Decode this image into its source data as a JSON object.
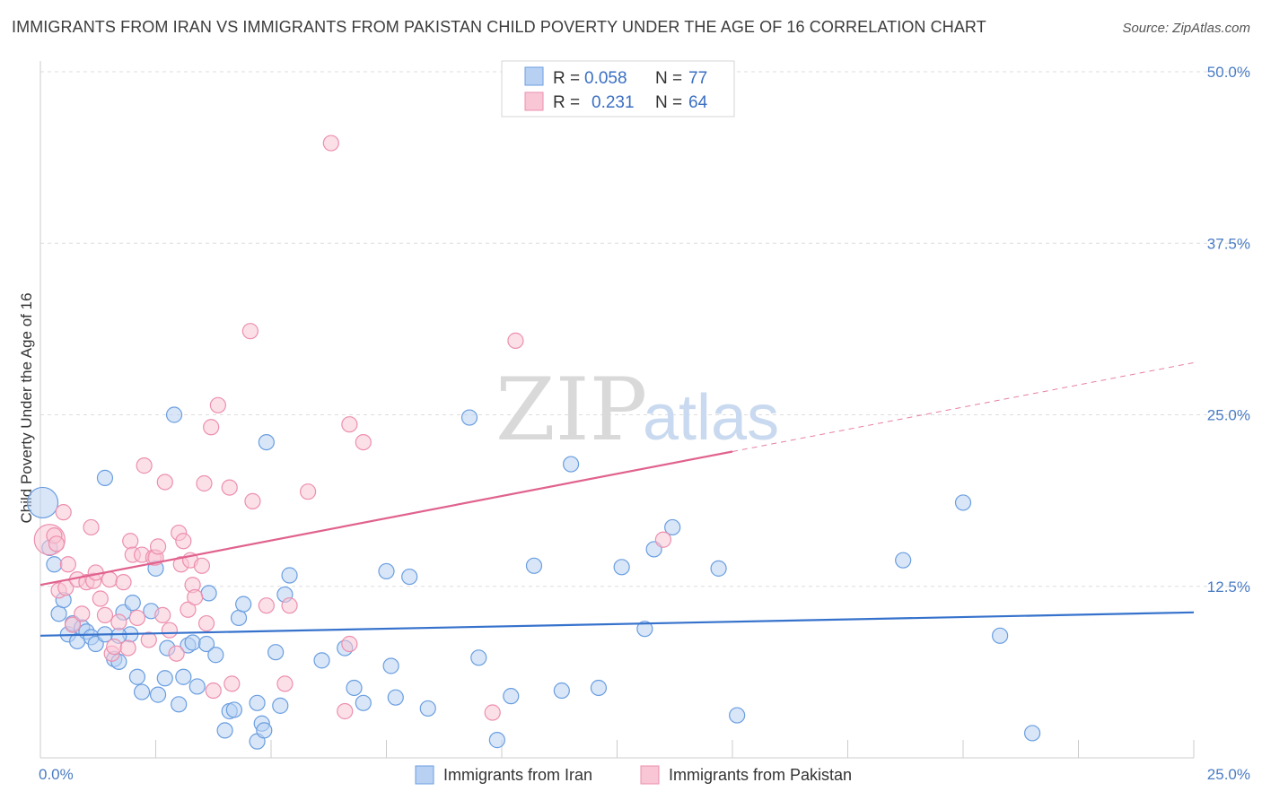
{
  "title": "IMMIGRANTS FROM IRAN VS IMMIGRANTS FROM PAKISTAN CHILD POVERTY UNDER THE AGE OF 16 CORRELATION CHART",
  "source": "Source: ZipAtlas.com",
  "watermark": {
    "zip": "ZIP",
    "atlas": "atlas"
  },
  "colors": {
    "iran_fill": "#b8d1f3",
    "iran_stroke": "#6a9ee0",
    "iran_line": "#3672cc",
    "pakistan_fill": "#f9c6d6",
    "pakistan_stroke": "#ec8fae",
    "pakistan_line": "#e0628e",
    "grid": "#dddddd",
    "tick_text": "#4a7cc4"
  },
  "legend": {
    "iran": {
      "r_label": "R =",
      "r_value": "0.058",
      "n_label": "N =",
      "n_value": "77"
    },
    "pakistan": {
      "r_label": "R =",
      "r_value": "0.231",
      "n_label": "N =",
      "n_value": "64"
    }
  },
  "bottom_legend": {
    "iran": "Immigrants from Iran",
    "pakistan": "Immigrants from Pakistan"
  },
  "chart_data": {
    "type": "scatter",
    "ylabel": "Child Poverty Under the Age of 16",
    "xlim": [
      0,
      25
    ],
    "ylim": [
      0,
      50
    ],
    "x_tick_labels": {
      "min": "0.0%",
      "max": "25.0%"
    },
    "y_ticks": [
      {
        "value": 12.5,
        "label": "12.5%"
      },
      {
        "value": 25.0,
        "label": "25.0%"
      },
      {
        "value": 37.5,
        "label": "37.5%"
      },
      {
        "value": 50.0,
        "label": "50.0%"
      }
    ],
    "x_minor_ticks": [
      2.5,
      5.0,
      7.5,
      10.0,
      12.5,
      15.0,
      17.5,
      20.0,
      22.5,
      25.0
    ],
    "grid": true,
    "legend_position": "top-center",
    "series": [
      {
        "name": "Immigrants from Iran",
        "key": "iran",
        "trend": {
          "x": [
            0,
            25
          ],
          "y": [
            8.9,
            10.6
          ],
          "solid_until": 25
        },
        "points": [
          {
            "x": 0.05,
            "y": 18.6,
            "big": true
          },
          {
            "x": 0.2,
            "y": 15.3
          },
          {
            "x": 0.3,
            "y": 14.1
          },
          {
            "x": 0.4,
            "y": 10.5
          },
          {
            "x": 0.5,
            "y": 11.5
          },
          {
            "x": 0.6,
            "y": 9.0
          },
          {
            "x": 0.7,
            "y": 9.8
          },
          {
            "x": 0.8,
            "y": 8.5
          },
          {
            "x": 0.9,
            "y": 9.5
          },
          {
            "x": 1.0,
            "y": 9.2
          },
          {
            "x": 1.1,
            "y": 8.8
          },
          {
            "x": 1.2,
            "y": 8.3
          },
          {
            "x": 1.4,
            "y": 9.0
          },
          {
            "x": 1.6,
            "y": 7.2
          },
          {
            "x": 1.7,
            "y": 7.0
          },
          {
            "x": 1.4,
            "y": 20.4
          },
          {
            "x": 1.8,
            "y": 10.6
          },
          {
            "x": 1.95,
            "y": 9.0
          },
          {
            "x": 2.0,
            "y": 11.3
          },
          {
            "x": 2.1,
            "y": 5.9
          },
          {
            "x": 2.2,
            "y": 4.8
          },
          {
            "x": 2.4,
            "y": 10.7
          },
          {
            "x": 2.5,
            "y": 13.8
          },
          {
            "x": 2.55,
            "y": 4.6
          },
          {
            "x": 2.7,
            "y": 5.8
          },
          {
            "x": 2.75,
            "y": 8.0
          },
          {
            "x": 3.0,
            "y": 3.9
          },
          {
            "x": 3.1,
            "y": 5.9
          },
          {
            "x": 3.2,
            "y": 8.2
          },
          {
            "x": 3.3,
            "y": 8.4
          },
          {
            "x": 3.4,
            "y": 5.2
          },
          {
            "x": 3.6,
            "y": 8.3
          },
          {
            "x": 3.65,
            "y": 12.0
          },
          {
            "x": 3.8,
            "y": 7.5
          },
          {
            "x": 4.0,
            "y": 2.0
          },
          {
            "x": 4.1,
            "y": 3.4
          },
          {
            "x": 4.2,
            "y": 3.5
          },
          {
            "x": 4.3,
            "y": 10.2
          },
          {
            "x": 4.4,
            "y": 11.2
          },
          {
            "x": 4.7,
            "y": 1.2
          },
          {
            "x": 4.7,
            "y": 4.0
          },
          {
            "x": 4.8,
            "y": 2.5
          },
          {
            "x": 4.85,
            "y": 2.0
          },
          {
            "x": 4.9,
            "y": 23.0
          },
          {
            "x": 5.1,
            "y": 7.7
          },
          {
            "x": 5.2,
            "y": 3.8
          },
          {
            "x": 5.3,
            "y": 11.9
          },
          {
            "x": 5.4,
            "y": 13.3
          },
          {
            "x": 6.1,
            "y": 7.1
          },
          {
            "x": 6.6,
            "y": 8.0
          },
          {
            "x": 6.8,
            "y": 5.1
          },
          {
            "x": 7.0,
            "y": 4.0
          },
          {
            "x": 7.5,
            "y": 13.6
          },
          {
            "x": 7.6,
            "y": 6.7
          },
          {
            "x": 7.7,
            "y": 4.4
          },
          {
            "x": 8.0,
            "y": 13.2
          },
          {
            "x": 8.4,
            "y": 3.6
          },
          {
            "x": 2.9,
            "y": 25.0
          },
          {
            "x": 9.3,
            "y": 24.8
          },
          {
            "x": 9.5,
            "y": 7.3
          },
          {
            "x": 9.9,
            "y": 1.3
          },
          {
            "x": 10.2,
            "y": 4.5
          },
          {
            "x": 10.7,
            "y": 14.0
          },
          {
            "x": 11.3,
            "y": 4.9
          },
          {
            "x": 11.5,
            "y": 21.4
          },
          {
            "x": 12.1,
            "y": 5.1
          },
          {
            "x": 12.6,
            "y": 13.9
          },
          {
            "x": 13.1,
            "y": 9.4
          },
          {
            "x": 13.3,
            "y": 15.2
          },
          {
            "x": 13.7,
            "y": 16.8
          },
          {
            "x": 14.7,
            "y": 13.8
          },
          {
            "x": 15.1,
            "y": 3.1
          },
          {
            "x": 18.7,
            "y": 14.4
          },
          {
            "x": 20.0,
            "y": 18.6
          },
          {
            "x": 20.8,
            "y": 8.9
          },
          {
            "x": 21.5,
            "y": 1.8
          },
          {
            "x": 1.7,
            "y": 8.9
          }
        ]
      },
      {
        "name": "Immigrants from Pakistan",
        "key": "pakistan",
        "trend": {
          "x": [
            0,
            25
          ],
          "y": [
            12.6,
            28.8
          ],
          "solid_until": 15
        },
        "points": [
          {
            "x": 0.2,
            "y": 15.9,
            "big": true
          },
          {
            "x": 0.3,
            "y": 16.2
          },
          {
            "x": 0.35,
            "y": 15.6
          },
          {
            "x": 0.4,
            "y": 12.2
          },
          {
            "x": 0.5,
            "y": 17.9
          },
          {
            "x": 0.55,
            "y": 12.4
          },
          {
            "x": 0.6,
            "y": 14.1
          },
          {
            "x": 0.7,
            "y": 9.7
          },
          {
            "x": 0.8,
            "y": 13.0
          },
          {
            "x": 0.9,
            "y": 10.5
          },
          {
            "x": 1.0,
            "y": 12.8
          },
          {
            "x": 1.1,
            "y": 16.8
          },
          {
            "x": 1.15,
            "y": 12.9
          },
          {
            "x": 1.2,
            "y": 13.5
          },
          {
            "x": 1.3,
            "y": 11.6
          },
          {
            "x": 1.4,
            "y": 10.4
          },
          {
            "x": 1.5,
            "y": 13.0
          },
          {
            "x": 1.55,
            "y": 7.6
          },
          {
            "x": 1.6,
            "y": 8.1
          },
          {
            "x": 1.7,
            "y": 9.9
          },
          {
            "x": 1.8,
            "y": 12.8
          },
          {
            "x": 1.9,
            "y": 8.0
          },
          {
            "x": 1.95,
            "y": 15.8
          },
          {
            "x": 2.0,
            "y": 14.8
          },
          {
            "x": 2.1,
            "y": 10.2
          },
          {
            "x": 2.2,
            "y": 14.8
          },
          {
            "x": 2.25,
            "y": 21.3
          },
          {
            "x": 2.35,
            "y": 8.6
          },
          {
            "x": 2.45,
            "y": 14.6
          },
          {
            "x": 2.5,
            "y": 14.6
          },
          {
            "x": 2.55,
            "y": 15.4
          },
          {
            "x": 2.65,
            "y": 10.4
          },
          {
            "x": 2.7,
            "y": 20.1
          },
          {
            "x": 2.8,
            "y": 9.3
          },
          {
            "x": 2.95,
            "y": 7.6
          },
          {
            "x": 3.0,
            "y": 16.4
          },
          {
            "x": 3.05,
            "y": 14.1
          },
          {
            "x": 3.1,
            "y": 15.8
          },
          {
            "x": 3.2,
            "y": 10.8
          },
          {
            "x": 3.25,
            "y": 14.4
          },
          {
            "x": 3.3,
            "y": 12.6
          },
          {
            "x": 3.35,
            "y": 11.7
          },
          {
            "x": 3.5,
            "y": 14.0
          },
          {
            "x": 3.55,
            "y": 20.0
          },
          {
            "x": 3.6,
            "y": 9.8
          },
          {
            "x": 3.7,
            "y": 24.1
          },
          {
            "x": 3.75,
            "y": 4.9
          },
          {
            "x": 3.85,
            "y": 25.7
          },
          {
            "x": 4.1,
            "y": 19.7
          },
          {
            "x": 4.15,
            "y": 5.4
          },
          {
            "x": 4.6,
            "y": 18.7
          },
          {
            "x": 4.55,
            "y": 31.1
          },
          {
            "x": 4.9,
            "y": 11.1
          },
          {
            "x": 5.3,
            "y": 5.4
          },
          {
            "x": 5.4,
            "y": 11.1
          },
          {
            "x": 5.8,
            "y": 19.4
          },
          {
            "x": 6.3,
            "y": 44.8
          },
          {
            "x": 6.6,
            "y": 3.4
          },
          {
            "x": 6.7,
            "y": 8.3
          },
          {
            "x": 6.7,
            "y": 24.3
          },
          {
            "x": 7.0,
            "y": 23.0
          },
          {
            "x": 9.8,
            "y": 3.3
          },
          {
            "x": 10.3,
            "y": 30.4
          },
          {
            "x": 13.5,
            "y": 15.9
          }
        ]
      }
    ]
  }
}
